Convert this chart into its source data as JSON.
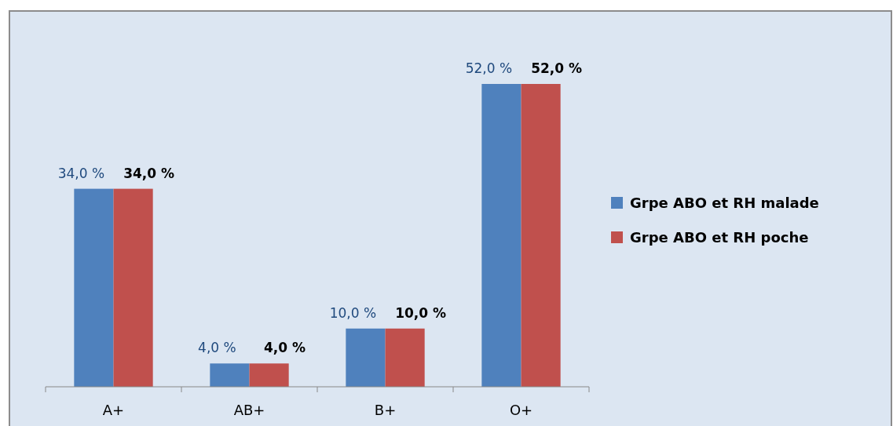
{
  "chart_data": {
    "type": "bar",
    "categories": [
      "A+",
      "AB+",
      "B+",
      "O+"
    ],
    "series": [
      {
        "name": "Grpe ABO et RH malade",
        "color": "#4f81bd",
        "values": [
          34,
          4,
          10,
          52
        ],
        "value_labels": [
          "34,0 %",
          "4,0 %",
          "10,0 %",
          "52,0 %"
        ]
      },
      {
        "name": "Grpe ABO et RH poche",
        "color": "#c0504d",
        "values": [
          34,
          4,
          10,
          52
        ],
        "value_labels": [
          "34,0 %",
          "4,0 %",
          "10,0 %",
          "52,0 %"
        ]
      }
    ],
    "legend": "right"
  }
}
